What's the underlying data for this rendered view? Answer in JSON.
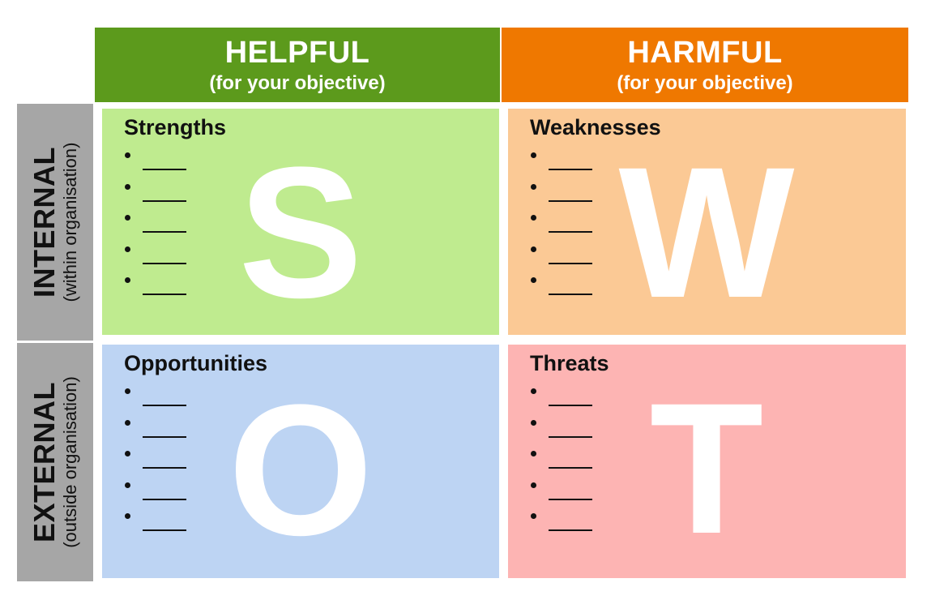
{
  "columns": {
    "helpful": {
      "label": "HELPFUL",
      "sub": "(for your objective)",
      "color": "#5c9a1c"
    },
    "harmful": {
      "label": "HARMFUL",
      "sub": "(for your objective)",
      "color": "#ef7800"
    }
  },
  "rows": {
    "internal": {
      "label": "INTERNAL",
      "sub": "(within organisation)",
      "color": "#a6a6a6"
    },
    "external": {
      "label": "EXTERNAL",
      "sub": "(outside organisation)",
      "color": "#a6a6a6"
    }
  },
  "quadrants": {
    "strengths": {
      "title": "Strengths",
      "letter": "S",
      "bullet_count": 5,
      "color": "#bfeb8f"
    },
    "weaknesses": {
      "title": "Weaknesses",
      "letter": "W",
      "bullet_count": 5,
      "color": "#fbc995"
    },
    "opportunities": {
      "title": "Opportunities",
      "letter": "O",
      "bullet_count": 5,
      "color": "#bdd4f3"
    },
    "threats": {
      "title": "Threats",
      "letter": "T",
      "bullet_count": 5,
      "color": "#fdb4b3"
    }
  }
}
